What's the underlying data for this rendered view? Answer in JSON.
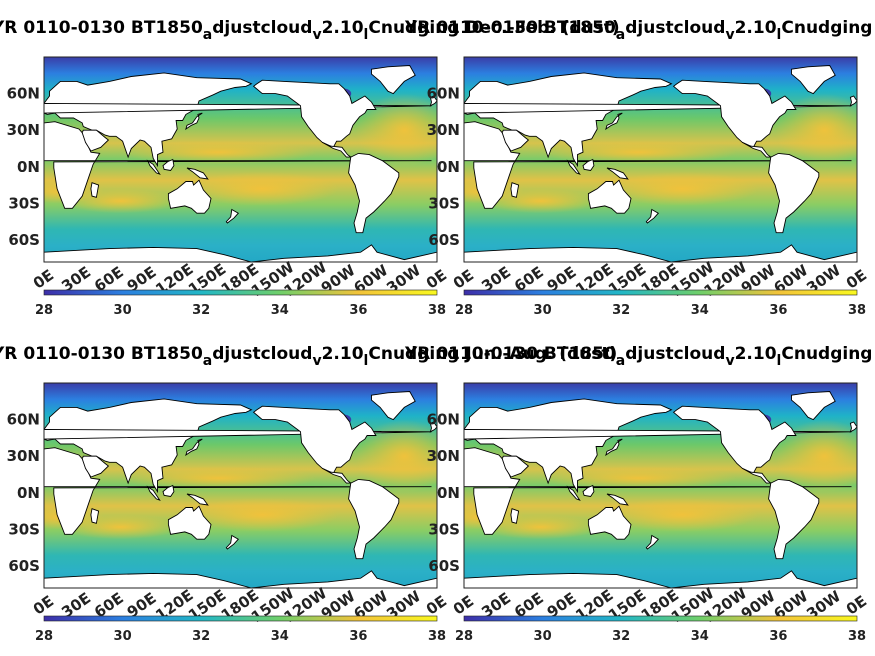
{
  "figure": {
    "panels": [
      {
        "title_a": "YR 0110-0130 BT1850",
        "title_b": "djustcloud",
        "title_c": "2.10",
        "title_d": "Cnudging Dec.-Feb. (dust)",
        "sub_a": "a",
        "sub_v": "v",
        "sub_l": "l"
      },
      {
        "title_a": "YR 0110-0130 BT1850",
        "title_b": "djustcloud",
        "title_c": "2.10",
        "title_d": "Cnudging Mar.-May (dust)",
        "sub_a": "a",
        "sub_v": "v",
        "sub_l": "l"
      },
      {
        "title_a": "YR 0110-0130 BT1850",
        "title_b": "djustcloud",
        "title_c": "2.10",
        "title_d": "Cnudging Jun.-Aug. (dust)",
        "sub_a": "a",
        "sub_v": "v",
        "sub_l": "l"
      },
      {
        "title_a": "YR 0110-0130 BT1850",
        "title_b": "djustcloud",
        "title_c": "2.10",
        "title_d": "Cnudging Sep.-Nov. (dust)",
        "sub_a": "a",
        "sub_v": "v",
        "sub_l": "l"
      }
    ]
  },
  "chart_data": {
    "type": "heatmap",
    "map": "global ocean field, land masked white, Pacific-centred",
    "ylabels": [
      "60N",
      "30N",
      "0N",
      "30S",
      "60S"
    ],
    "yvalues": [
      60,
      30,
      0,
      -30,
      -60
    ],
    "xlabels": [
      "0E",
      "30E",
      "60E",
      "90E",
      "120E",
      "150E",
      "180E",
      "150W",
      "120W",
      "90W",
      "60W",
      "30W",
      "0E"
    ],
    "colorbar": {
      "ticks": [
        "28",
        "30",
        "32",
        "34",
        "36",
        "38"
      ],
      "range": [
        28,
        38
      ],
      "colors": [
        "#3d2ea8",
        "#2c7fe0",
        "#22b7c6",
        "#6fcf6a",
        "#f2c33a",
        "#f9f81f"
      ]
    },
    "ylim": [
      -78,
      90
    ],
    "xlim": [
      0,
      360
    ]
  },
  "colors": {
    "ocean_mid": "#33b8a5",
    "ocean_high": "#f1c03b",
    "ocean_low": "#3a3da8",
    "land": "#ffffff",
    "coast": "#000000"
  }
}
